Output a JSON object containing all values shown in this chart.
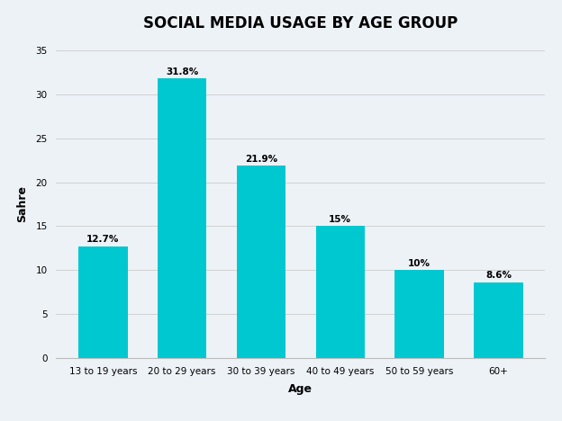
{
  "title": "SOCIAL MEDIA USAGE BY AGE GROUP",
  "categories": [
    "13 to 19 years",
    "20 to 29 years",
    "30 to 39 years",
    "40 to 49 years",
    "50 to 59 years",
    "60+"
  ],
  "values": [
    12.7,
    31.8,
    21.9,
    15.0,
    10.0,
    8.6
  ],
  "labels": [
    "12.7%",
    "31.8%",
    "21.9%",
    "15%",
    "10%",
    "8.6%"
  ],
  "bar_color": "#00C8D0",
  "background_color": "#edf2f7",
  "xlabel": "Age",
  "ylabel": "Sahre",
  "ylim": [
    0,
    35
  ],
  "yticks": [
    0,
    5,
    10,
    15,
    20,
    25,
    30,
    35
  ],
  "title_fontsize": 12,
  "label_fontsize": 7.5,
  "axis_label_fontsize": 9,
  "tick_fontsize": 7.5,
  "bar_width": 0.62
}
